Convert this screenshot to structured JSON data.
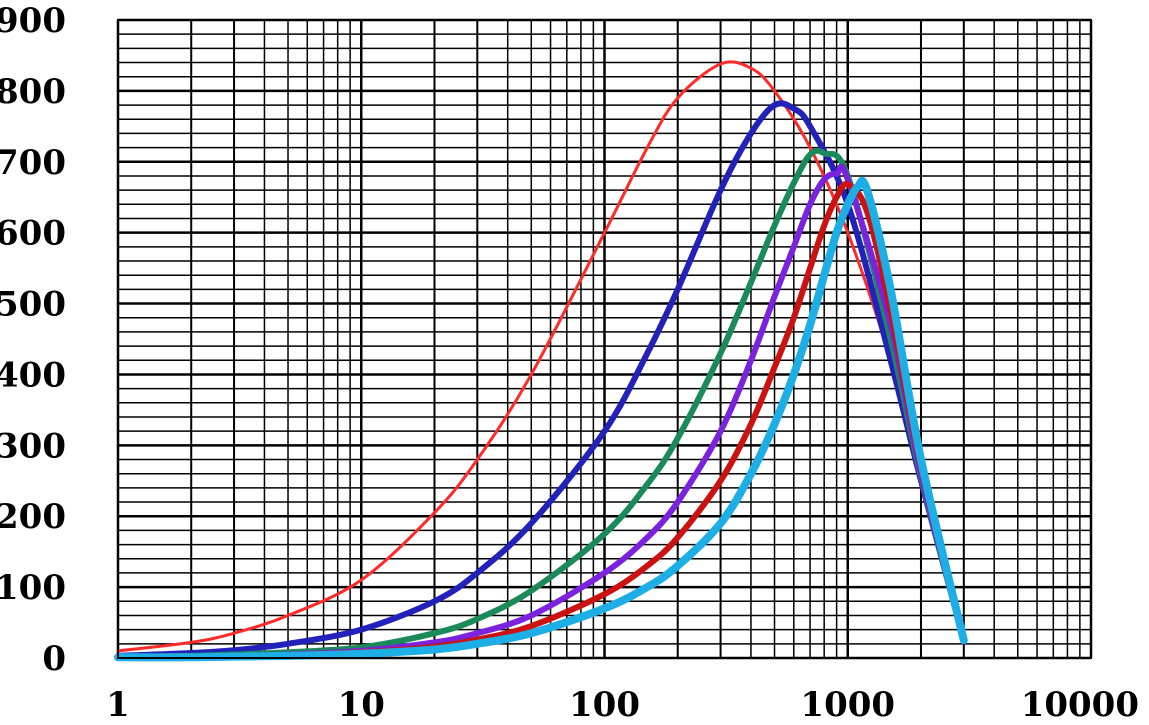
{
  "chart_data": {
    "type": "line",
    "title": "",
    "xlabel": "",
    "ylabel": "",
    "xscale": "log",
    "xlim": [
      1,
      10000
    ],
    "ylim": [
      0,
      900
    ],
    "grid": true,
    "legend": "none",
    "x_ticks": [
      1,
      10,
      100,
      1000,
      10000
    ],
    "x_tick_labels": [
      "1",
      "10",
      "100",
      "1000",
      "10000"
    ],
    "y_ticks": [
      0,
      100,
      200,
      300,
      400,
      500,
      600,
      700,
      800,
      900
    ],
    "y_tick_labels": [
      "0",
      "100",
      "200",
      "300",
      "400",
      "500",
      "600",
      "700",
      "800",
      "900"
    ],
    "series": [
      {
        "name": "red curve (peak ~840 at x≈340)",
        "color": "#ff2a2a",
        "width": 3,
        "x": [
          1,
          2,
          3,
          5,
          10,
          20,
          30,
          50,
          100,
          150,
          200,
          300,
          400,
          500,
          700,
          1000,
          1500,
          2000,
          3000
        ],
        "y": [
          10,
          22,
          35,
          60,
          110,
          205,
          280,
          400,
          600,
          720,
          790,
          838,
          832,
          800,
          720,
          600,
          420,
          250,
          25
        ]
      },
      {
        "name": "blue curve (peak ~780 at x≈520)",
        "color": "#2222bb",
        "width": 6,
        "x": [
          1,
          2,
          3,
          5,
          10,
          20,
          30,
          50,
          100,
          150,
          200,
          300,
          400,
          500,
          600,
          700,
          1000,
          1500,
          2000,
          3000
        ],
        "y": [
          3,
          7,
          11,
          20,
          40,
          80,
          120,
          190,
          320,
          430,
          520,
          660,
          740,
          780,
          775,
          750,
          640,
          420,
          250,
          25
        ]
      },
      {
        "name": "green curve (peak ~715 at x≈720)",
        "color": "#1b8a5a",
        "width": 6,
        "x": [
          1,
          2,
          3,
          5,
          10,
          20,
          30,
          50,
          100,
          150,
          200,
          300,
          400,
          500,
          600,
          700,
          800,
          1000,
          1500,
          2000,
          3000
        ],
        "y": [
          1,
          3,
          5,
          8,
          15,
          35,
          55,
          95,
          175,
          245,
          310,
          430,
          530,
          610,
          670,
          710,
          712,
          680,
          450,
          255,
          25
        ]
      },
      {
        "name": "purple curve (peak ~685 at x≈860)",
        "color": "#7a22dd",
        "width": 6,
        "x": [
          1,
          2,
          3,
          5,
          10,
          20,
          30,
          50,
          100,
          150,
          200,
          300,
          400,
          500,
          600,
          700,
          800,
          900,
          1000,
          1500,
          2000,
          3000
        ],
        "y": [
          1,
          2,
          3,
          5,
          10,
          22,
          35,
          60,
          120,
          170,
          220,
          320,
          420,
          510,
          580,
          640,
          675,
          683,
          675,
          470,
          260,
          25
        ]
      },
      {
        "name": "dark red curve (peak ~670 at x≈1000)",
        "color": "#cc1111",
        "width": 6,
        "x": [
          1,
          2,
          3,
          5,
          10,
          20,
          30,
          50,
          100,
          150,
          200,
          300,
          400,
          500,
          600,
          700,
          800,
          900,
          1000,
          1200,
          1500,
          2000,
          3000
        ],
        "y": [
          1,
          1,
          2,
          4,
          8,
          16,
          26,
          45,
          90,
          130,
          170,
          250,
          330,
          410,
          480,
          550,
          610,
          650,
          668,
          630,
          490,
          270,
          25
        ]
      },
      {
        "name": "light blue curve (peak ~665 at x≈1100)",
        "color": "#1eaee6",
        "width": 8,
        "x": [
          1,
          2,
          3,
          5,
          10,
          20,
          30,
          50,
          100,
          150,
          200,
          300,
          400,
          500,
          600,
          700,
          800,
          900,
          1000,
          1100,
          1200,
          1500,
          2000,
          3000
        ],
        "y": [
          1,
          1,
          2,
          3,
          6,
          12,
          20,
          35,
          70,
          100,
          130,
          190,
          260,
          330,
          400,
          470,
          540,
          600,
          640,
          665,
          660,
          520,
          280,
          25
        ]
      }
    ]
  }
}
